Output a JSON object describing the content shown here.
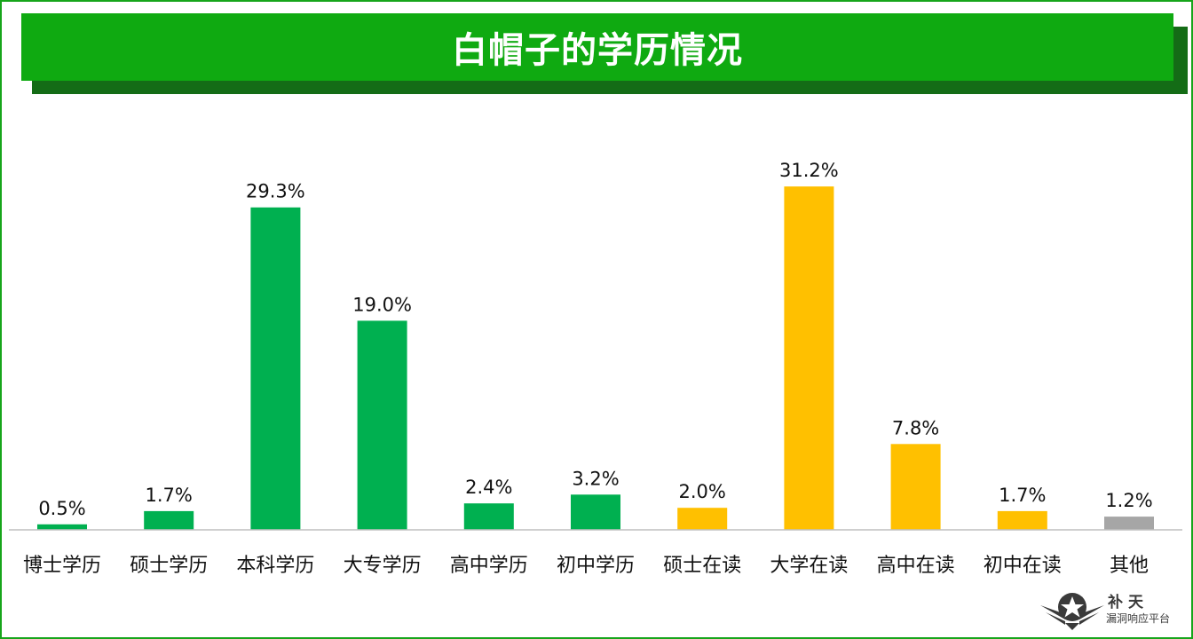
{
  "header": {
    "title": "白帽子的学历情况"
  },
  "colors": {
    "frame": "#16a51a",
    "banner": "#0faa11",
    "banner_shadow": "#146c16",
    "green_bar": "#00b050",
    "yellow_bar": "#ffc000",
    "gray_bar": "#a6a6a6"
  },
  "chart_data": {
    "type": "bar",
    "title": "白帽子的学历情况",
    "xlabel": "",
    "ylabel": "",
    "ylim": [
      0,
      35
    ],
    "grid": false,
    "legend": "none",
    "unit": "%",
    "categories": [
      "博士学历",
      "硕士学历",
      "本科学历",
      "大专学历",
      "高中学历",
      "初中学历",
      "硕士在读",
      "大学在读",
      "高中在读",
      "初中在读",
      "其他"
    ],
    "values": [
      0.5,
      1.7,
      29.3,
      19.0,
      2.4,
      3.2,
      2.0,
      31.2,
      7.8,
      1.7,
      1.2
    ],
    "labels": [
      "0.5%",
      "1.7%",
      "29.3%",
      "19.0%",
      "2.4%",
      "3.2%",
      "2.0%",
      "31.2%",
      "7.8%",
      "1.7%",
      "1.2%"
    ],
    "bar_colors": [
      "green",
      "green",
      "green",
      "green",
      "green",
      "green",
      "yellow",
      "yellow",
      "yellow",
      "yellow",
      "gray"
    ]
  },
  "watermark": {
    "brand": "补天",
    "subtitle": "漏洞响应平台"
  }
}
